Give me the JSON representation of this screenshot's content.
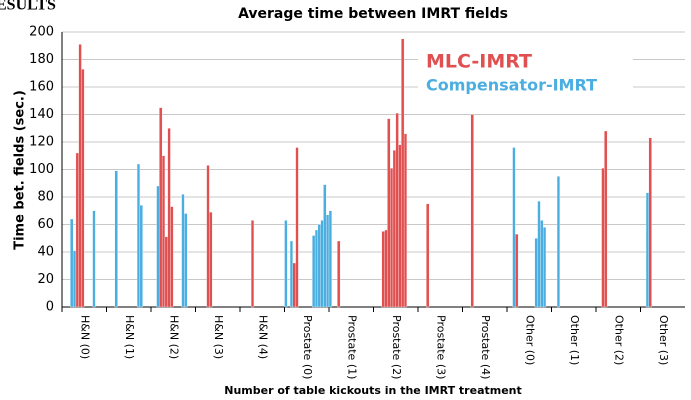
{
  "header_fragment": "ESULTS",
  "chart_data": {
    "type": "bar",
    "title": "Average time between IMRT fields",
    "x_label": "Number of table kickouts in the IMRT treatment",
    "y_label": "Time bet. fields (sec.)",
    "categories": [
      "H&N (0)",
      "H&N (1)",
      "H&N (2)",
      "H&N (3)",
      "H&N (4)",
      "Prostate (0)",
      "Prostate (1)",
      "Prostate (2)",
      "Prostate (3)",
      "Prostate (4)",
      "Other (0)",
      "Other (1)",
      "Other (2)",
      "Other (3)"
    ],
    "series": [
      {
        "name": "MLC-IMRT",
        "color": "#e05050",
        "values": [
          [
            null,
            null,
            null,
            null,
            null,
            112,
            191,
            173,
            null,
            null,
            null,
            null,
            null,
            null,
            null,
            null
          ],
          [
            null,
            null,
            null,
            null,
            null,
            null,
            null,
            null,
            null,
            null,
            null,
            null,
            null,
            null,
            null,
            null
          ],
          [
            null,
            null,
            null,
            145,
            110,
            51,
            130,
            73,
            null,
            null,
            null,
            null,
            null,
            null,
            null,
            null
          ],
          [
            null,
            null,
            null,
            null,
            103,
            69,
            null,
            null,
            null,
            null,
            null,
            null,
            null,
            null,
            null,
            null
          ],
          [
            null,
            null,
            null,
            null,
            63,
            null,
            null,
            null,
            null,
            null,
            null,
            null,
            null,
            null,
            null,
            null
          ],
          [
            null,
            null,
            null,
            32,
            116,
            null,
            null,
            null,
            null,
            null,
            null,
            null,
            null,
            null,
            null,
            null
          ],
          [
            null,
            null,
            null,
            48,
            null,
            null,
            null,
            null,
            null,
            null,
            null,
            null,
            null,
            null,
            null,
            null
          ],
          [
            null,
            null,
            null,
            55,
            56,
            137,
            101,
            114,
            141,
            118,
            195,
            126,
            null,
            null,
            null,
            null
          ],
          [
            null,
            null,
            null,
            75,
            null,
            null,
            null,
            null,
            null,
            null,
            null,
            null,
            null,
            null,
            null,
            null
          ],
          [
            null,
            null,
            null,
            140,
            null,
            null,
            null,
            null,
            null,
            null,
            null,
            null,
            null,
            null,
            null,
            null
          ],
          [
            null,
            null,
            null,
            53,
            null,
            null,
            null,
            null,
            null,
            null,
            null,
            null,
            null,
            null,
            null,
            null
          ],
          [
            null,
            null,
            null,
            null,
            null,
            null,
            null,
            null,
            null,
            null,
            null,
            null,
            null,
            null,
            null,
            null
          ],
          [
            null,
            null,
            101,
            128,
            null,
            null,
            null,
            null,
            null,
            null,
            null,
            null,
            null,
            null,
            null,
            null
          ],
          [
            null,
            null,
            null,
            123,
            null,
            null,
            null,
            null,
            null,
            null,
            null,
            null,
            null,
            null,
            null,
            null
          ]
        ]
      },
      {
        "name": "Compensator-IMRT",
        "color": "#4aaee0",
        "values": [
          [
            null,
            null,
            null,
            64,
            41,
            null,
            null,
            null,
            null,
            null,
            null,
            70,
            null,
            null,
            null,
            null
          ],
          [
            null,
            null,
            null,
            99,
            null,
            null,
            null,
            null,
            null,
            null,
            null,
            104,
            74,
            null,
            null,
            null
          ],
          [
            null,
            null,
            88,
            null,
            null,
            null,
            null,
            null,
            null,
            null,
            null,
            82,
            68,
            null,
            null,
            null
          ],
          [
            null,
            null,
            null,
            null,
            null,
            null,
            null,
            null,
            null,
            null,
            null,
            null,
            null,
            null,
            null,
            null
          ],
          [
            null,
            null,
            null,
            null,
            null,
            null,
            null,
            null,
            null,
            null,
            null,
            null,
            null,
            null,
            null,
            null
          ],
          [
            63,
            null,
            48,
            null,
            null,
            null,
            null,
            null,
            null,
            null,
            52,
            56,
            60,
            63,
            89,
            67
          ],
          [
            70,
            null,
            null,
            null,
            null,
            null,
            null,
            null,
            null,
            null,
            null,
            null,
            null,
            null,
            null,
            null
          ],
          [
            null,
            null,
            null,
            null,
            null,
            null,
            null,
            null,
            null,
            null,
            null,
            null,
            null,
            null,
            null,
            null
          ],
          [
            null,
            null,
            null,
            null,
            null,
            null,
            null,
            null,
            null,
            null,
            null,
            null,
            null,
            null,
            null,
            null
          ],
          [
            null,
            null,
            null,
            null,
            null,
            null,
            null,
            null,
            null,
            null,
            null,
            null,
            null,
            null,
            null,
            null
          ],
          [
            null,
            null,
            116,
            null,
            null,
            null,
            null,
            null,
            null,
            null,
            50,
            77,
            63,
            58,
            null,
            null
          ],
          [
            null,
            null,
            95,
            null,
            null,
            null,
            null,
            null,
            null,
            null,
            null,
            null,
            null,
            null,
            null,
            null
          ],
          [
            null,
            null,
            null,
            null,
            null,
            null,
            null,
            null,
            null,
            null,
            null,
            null,
            null,
            null,
            null,
            null
          ],
          [
            null,
            null,
            83,
            null,
            null,
            null,
            null,
            null,
            null,
            null,
            null,
            null,
            null,
            null,
            null,
            null
          ]
        ]
      }
    ],
    "ylim": [
      0,
      200
    ],
    "yticks": [
      0,
      20,
      40,
      60,
      80,
      100,
      120,
      140,
      160,
      180,
      200
    ],
    "grid": true,
    "legend": "top-right"
  }
}
